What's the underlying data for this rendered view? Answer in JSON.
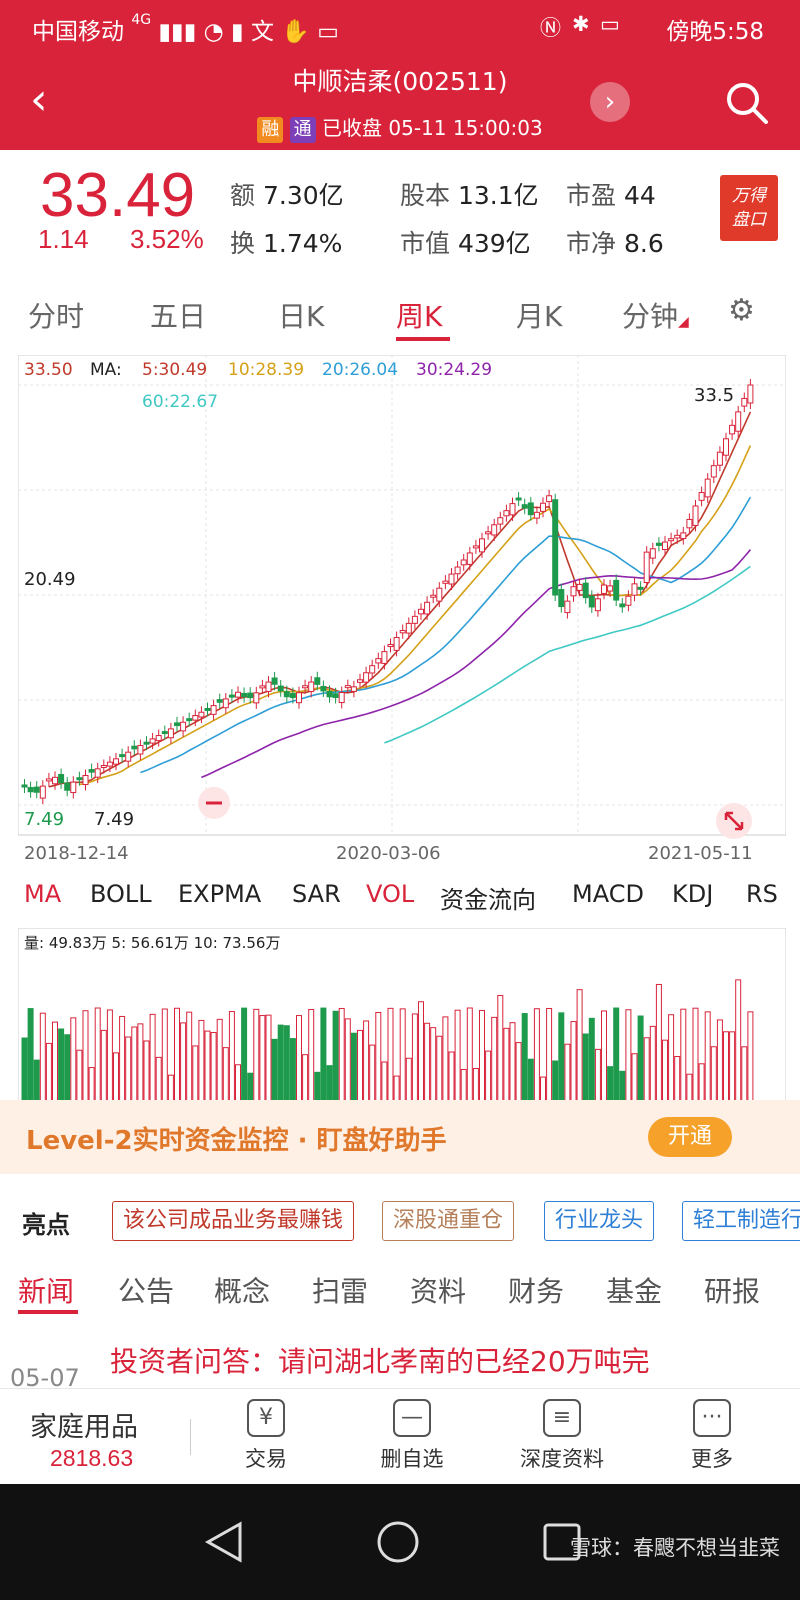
{
  "status_bar": {
    "carrier": "中国移动",
    "network": "4G",
    "time": "傍晚5:58"
  },
  "header": {
    "title": "中顺洁柔(002511)",
    "tag1": "融",
    "tag2": "通",
    "status": "已收盘 05-11 15:00:03"
  },
  "quote": {
    "price": "33.49",
    "change": "1.14",
    "change_pct": "3.52%",
    "amount_label": "额",
    "amount": "7.30亿",
    "turnover_label": "换",
    "turnover": "1.74%",
    "share_label": "股本",
    "share": "13.1亿",
    "mktcap_label": "市值",
    "mktcap": "439亿",
    "pe_label": "市盈",
    "pe": "44",
    "pb_label": "市净",
    "pb": "8.6",
    "badge_line1": "万得",
    "badge_line2": "盘口"
  },
  "chart_tabs": [
    "分时",
    "五日",
    "日K",
    "周K",
    "月K",
    "分钟"
  ],
  "chart_header": {
    "price": "33.50",
    "ma_label": "MA:",
    "ma5": "5:30.49",
    "ma10": "10:28.39",
    "ma20": "20:26.04",
    "ma30": "30:24.29",
    "ma60": "60:22.67",
    "high_label": "33.5",
    "mid_label": "20.49",
    "low_left": "7.49",
    "low_right": "7.49",
    "x_start": "2018-12-14",
    "x_mid": "2020-03-06",
    "x_end": "2021-05-11",
    "colors": {
      "up": "#d9233a",
      "down": "#1e9a4d",
      "ma5": "#c0392b",
      "ma10": "#d4a017",
      "ma20": "#2e9ed6",
      "ma30": "#8e24aa",
      "ma60": "#3fc9c4"
    }
  },
  "indicator_tabs": [
    "MA",
    "BOLL",
    "EXPMA",
    "SAR",
    "VOL",
    "资金流向",
    "MACD",
    "KDJ",
    "RS"
  ],
  "volume": {
    "label": "量: 49.83万  5: 56.61万  10: 73.56万"
  },
  "promo": {
    "text": "Level-2实时资金监控 · 盯盘好助手",
    "button": "开通"
  },
  "highlights": {
    "label": "亮点",
    "chips": [
      "该公司成品业务最赚钱",
      "深股通重仓",
      "行业龙头",
      "轻工制造行"
    ]
  },
  "news_tabs": [
    "新闻",
    "公告",
    "概念",
    "扫雷",
    "资料",
    "财务",
    "基金",
    "研报"
  ],
  "news": {
    "date": "05-07",
    "title": "投资者问答：请问湖北孝南的已经20万吨完"
  },
  "bottom": {
    "category": "家庭用品",
    "category_value": "2818.63",
    "buttons": [
      {
        "label": "交易",
        "icon": "¥"
      },
      {
        "label": "删自选",
        "icon": "—"
      },
      {
        "label": "深度资料",
        "icon": "≡"
      },
      {
        "label": "更多",
        "icon": "···"
      }
    ]
  },
  "watermark": "雪球：春颼不想当韭菜"
}
